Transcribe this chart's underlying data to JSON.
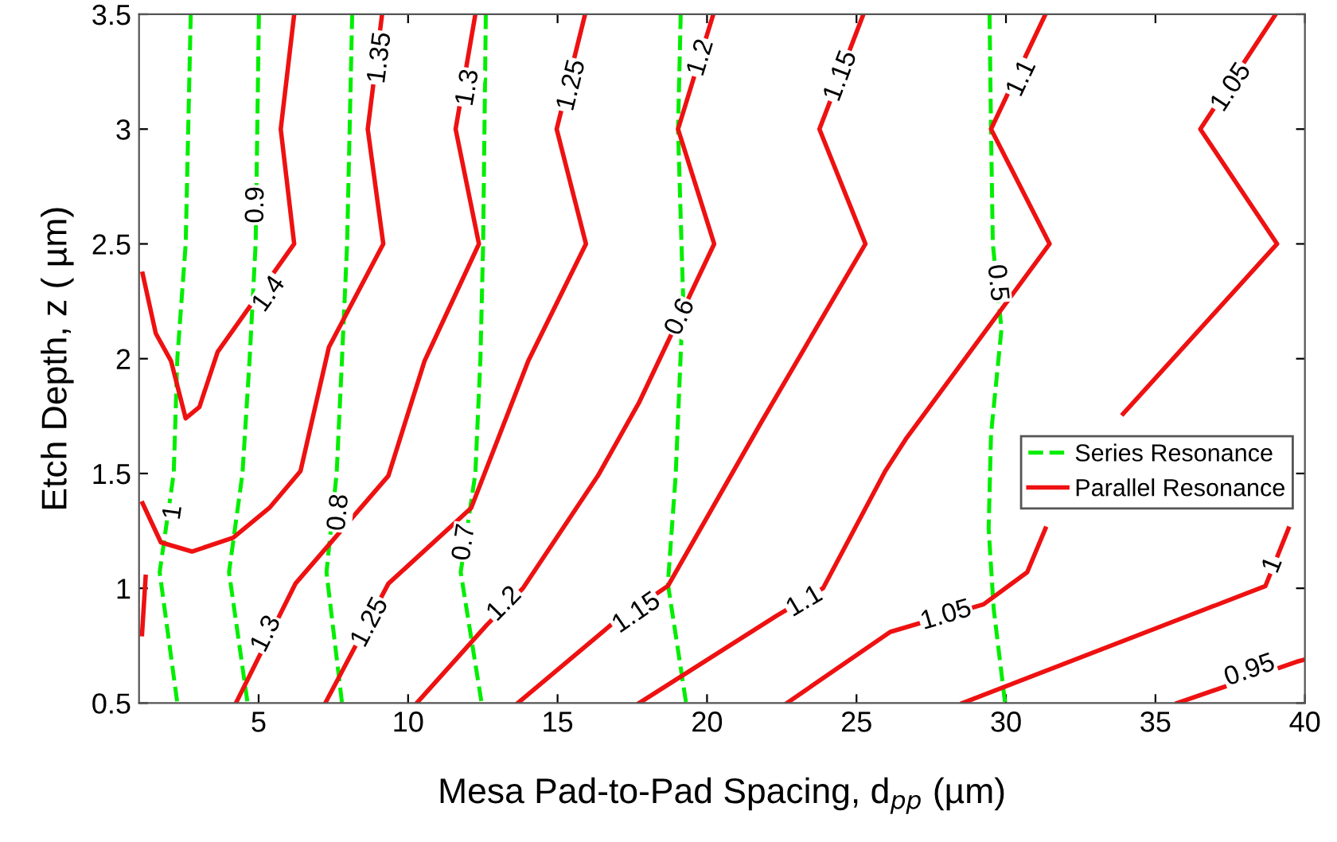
{
  "chart_data": {
    "type": "line",
    "xlabel": "Mesa Pad-to-Pad Spacing, d$_{pp}$ (µm)",
    "ylabel": "Etch Depth, z ( µm)",
    "xlim": [
      1,
      40
    ],
    "xticks": [
      5,
      10,
      15,
      20,
      25,
      30,
      35,
      40
    ],
    "ylim": [
      0.5,
      3.5
    ],
    "yticks": [
      0.5,
      1,
      1.5,
      2,
      2.5,
      3,
      3.5
    ],
    "grid": false,
    "legend": "right",
    "marker": "none",
    "series": [
      {
        "name": "Series Resonance",
        "color": "#00ee00",
        "line_style": "dashed",
        "x": [
          2.73,
          2.56,
          2.28,
          2.16,
          1.69,
          2.28,
          null,
          5.01,
          4.9,
          4.7,
          4.46,
          4.01,
          4.63,
          null,
          8.13,
          7.96,
          7.79,
          7.61,
          7.27,
          7.79,
          null,
          12.6,
          12.51,
          12.42,
          12.25,
          11.76,
          12.46,
          null,
          19.12,
          19.03,
          19.2,
          18.95,
          18.69,
          19.3,
          null,
          29.45,
          29.5,
          29.56,
          29.85,
          29.5,
          29.42,
          29.59,
          29.97
        ],
        "values": [
          3.5,
          2.5,
          2.0,
          1.5,
          1.07,
          0.5,
          null,
          3.5,
          2.5,
          2.0,
          1.5,
          1.07,
          0.5,
          null,
          3.5,
          2.5,
          2.0,
          1.5,
          1.07,
          0.5,
          null,
          3.5,
          2.5,
          2.0,
          1.5,
          1.07,
          0.5,
          null,
          3.5,
          3.0,
          2.27,
          1.49,
          1.02,
          0.5,
          null,
          3.5,
          3.0,
          2.5,
          2.13,
          1.67,
          1.26,
          0.91,
          0.5
        ]
      },
      {
        "name": "Parallel Resonance",
        "color": "#ee1111",
        "line_style": "solid",
        "x": [
          6.19,
          5.74,
          6.19,
          3.63,
          3.02,
          2.56,
          2.07,
          1.56,
          1.12,
          null,
          9.13,
          8.65,
          9.17,
          7.35,
          6.4,
          5.36,
          4.15,
          2.77,
          1.73,
          1.12,
          null,
          1.22,
          1.1,
          null,
          12.25,
          11.59,
          12.37,
          10.55,
          9.34,
          6.23,
          4.24,
          null,
          15.92,
          14.97,
          15.95,
          14.02,
          12.11,
          9.34,
          7.23,
          null,
          20.21,
          19.03,
          20.24,
          17.73,
          16.35,
          13.84,
          12.63,
          10.29,
          null,
          25.23,
          23.76,
          25.3,
          21.8,
          18.69,
          16.78,
          13.67,
          null,
          31.32,
          29.5,
          31.46,
          26.65,
          25.96,
          23.88,
          22.32,
          17.73,
          null,
          39.02,
          36.5,
          39.07,
          33.92,
          null,
          31.32,
          30.71,
          29.25,
          26.13,
          22.67,
          null,
          28.55,
          38.68,
          39.45,
          null,
          35.73,
          39.72,
          40
        ],
        "values": [
          3.5,
          3.0,
          2.5,
          2.03,
          1.79,
          1.74,
          1.99,
          2.11,
          2.37,
          null,
          3.5,
          3.0,
          2.5,
          2.05,
          1.51,
          1.35,
          1.22,
          1.16,
          1.2,
          1.37,
          null,
          1.05,
          0.8,
          null,
          3.5,
          3.0,
          2.5,
          1.99,
          1.49,
          1.02,
          0.5,
          null,
          3.5,
          3.0,
          2.5,
          1.99,
          1.35,
          1.02,
          0.5,
          null,
          3.5,
          3.0,
          2.5,
          1.81,
          1.49,
          1.0,
          0.84,
          0.5,
          null,
          3.5,
          3.0,
          2.5,
          1.72,
          1.01,
          0.84,
          0.5,
          null,
          3.5,
          3.0,
          2.5,
          1.65,
          1.51,
          1.0,
          0.88,
          0.5,
          null,
          3.5,
          3.0,
          2.5,
          1.76,
          null,
          1.26,
          1.07,
          0.93,
          0.81,
          0.5,
          null,
          0.5,
          1.01,
          1.26,
          null,
          0.5,
          0.68,
          0.69
        ]
      }
    ],
    "annotations": [
      {
        "text": "1",
        "x": 2.16,
        "y": 1.33
      },
      {
        "text": "0.9",
        "x": 4.93,
        "y": 2.67
      },
      {
        "text": "0.8",
        "x": 7.7,
        "y": 1.33
      },
      {
        "text": "0.7",
        "x": 11.9,
        "y": 1.2
      },
      {
        "text": "0.6",
        "x": 19.12,
        "y": 2.18
      },
      {
        "text": "0.5",
        "x": 29.69,
        "y": 2.33
      },
      {
        "text": "1.4",
        "x": 5.36,
        "y": 2.28
      },
      {
        "text": "1.35",
        "x": 9.08,
        "y": 3.31
      },
      {
        "text": "1.3",
        "x": 12.02,
        "y": 3.18
      },
      {
        "text": "1.3",
        "x": 5.27,
        "y": 0.8
      },
      {
        "text": "1.25",
        "x": 15.49,
        "y": 3.19
      },
      {
        "text": "1.25",
        "x": 8.74,
        "y": 0.85
      },
      {
        "text": "1.2",
        "x": 19.81,
        "y": 3.31
      },
      {
        "text": "1.2",
        "x": 13.23,
        "y": 0.93
      },
      {
        "text": "1.15",
        "x": 24.49,
        "y": 3.23
      },
      {
        "text": "1.15",
        "x": 17.65,
        "y": 0.89
      },
      {
        "text": "1.1",
        "x": 30.54,
        "y": 3.22
      },
      {
        "text": "1.1",
        "x": 23.27,
        "y": 0.94
      },
      {
        "text": "1.05",
        "x": 37.55,
        "y": 3.18
      },
      {
        "text": "1.05",
        "x": 28.0,
        "y": 0.88
      },
      {
        "text": "1",
        "x": 38.94,
        "y": 1.1
      },
      {
        "text": "0.95",
        "x": 38.16,
        "y": 0.64
      }
    ]
  }
}
